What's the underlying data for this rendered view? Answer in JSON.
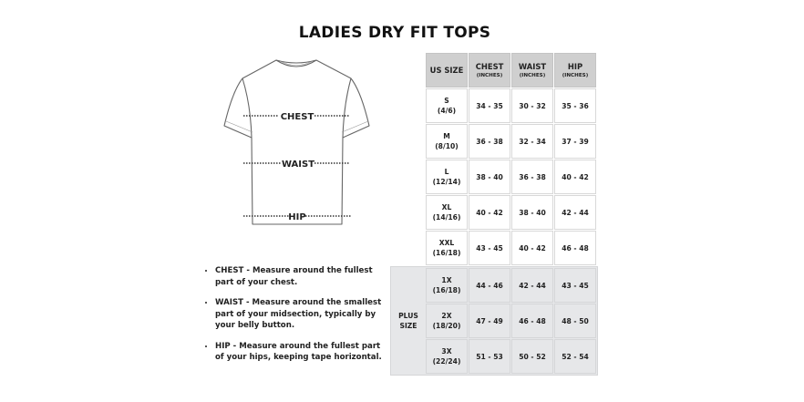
{
  "title": "LADIES DRY FIT TOPS",
  "diagram": {
    "chest_label": "CHEST",
    "waist_label": "WAIST",
    "hip_label": "HIP"
  },
  "notes": [
    "CHEST - Measure around the fullest part of your chest.",
    "WAIST - Measure around the smallest part of your midsection, typically by your belly button.",
    "HIP - Measure around the fullest part of your hips, keeping tape horizontal."
  ],
  "table": {
    "headers": [
      {
        "label": "US SIZE",
        "unit": ""
      },
      {
        "label": "CHEST",
        "unit": "(INCHES)"
      },
      {
        "label": "WAIST",
        "unit": "(INCHES)"
      },
      {
        "label": "HIP",
        "unit": "(INCHES)"
      }
    ],
    "rows": [
      {
        "size": "S",
        "us": "(4/6)",
        "chest": "34 - 35",
        "waist": "30 - 32",
        "hip": "35 - 36"
      },
      {
        "size": "M",
        "us": "(8/10)",
        "chest": "36 - 38",
        "waist": "32 - 34",
        "hip": "37 - 39"
      },
      {
        "size": "L",
        "us": "(12/14)",
        "chest": "38 - 40",
        "waist": "36 - 38",
        "hip": "40 - 42"
      },
      {
        "size": "XL",
        "us": "(14/16)",
        "chest": "40 - 42",
        "waist": "38 - 40",
        "hip": "42 - 44"
      },
      {
        "size": "XXL",
        "us": "(16/18)",
        "chest": "43 - 45",
        "waist": "40 - 42",
        "hip": "46 - 48"
      }
    ],
    "plus_label_1": "PLUS",
    "plus_label_2": "SIZE",
    "plus_rows": [
      {
        "size": "1X",
        "us": "(16/18)",
        "chest": "44 - 46",
        "waist": "42 - 44",
        "hip": "43 - 45"
      },
      {
        "size": "2X",
        "us": "(18/20)",
        "chest": "47 - 49",
        "waist": "46 - 48",
        "hip": "48 - 50"
      },
      {
        "size": "3X",
        "us": "(22/24)",
        "chest": "51 - 53",
        "waist": "50 - 52",
        "hip": "52 - 54"
      }
    ]
  }
}
